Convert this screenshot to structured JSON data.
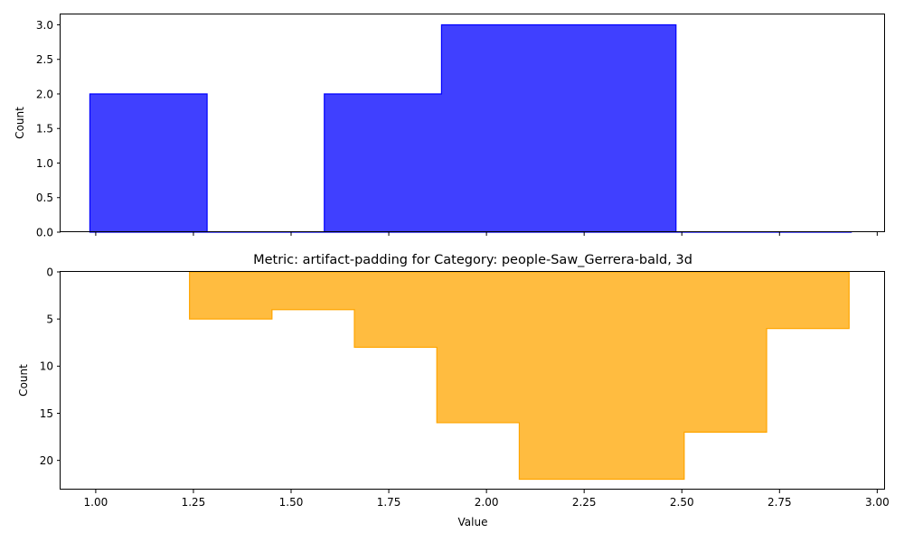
{
  "chart_data": [
    {
      "type": "histogram-step",
      "title": "",
      "xlabel": "",
      "ylabel": "Count",
      "xlim": [
        0.91,
        3.02
      ],
      "ylim": [
        0,
        3.15
      ],
      "xticks": [
        1.0,
        1.25,
        1.5,
        1.75,
        2.0,
        2.25,
        2.5,
        2.75,
        3.0
      ],
      "show_xtick_labels": false,
      "yticks": [
        "0.0",
        "0.5",
        "1.0",
        "1.5",
        "2.0",
        "2.5",
        "3.0"
      ],
      "ytick_values": [
        0,
        0.5,
        1.0,
        1.5,
        2.0,
        2.5,
        3.0
      ],
      "y_inverted": false,
      "color": "#0000ff",
      "fill_alpha": 0.75,
      "bin_edges": [
        0.985,
        1.285,
        1.585,
        1.885,
        2.185,
        2.485,
        2.785,
        3.085
      ],
      "counts": [
        2,
        0,
        2,
        3,
        3,
        0,
        0
      ],
      "draw_until": 2.935
    },
    {
      "type": "histogram-step",
      "title": "Metric: artifact-padding for Category: people-Saw_Gerrera-bald, 3d",
      "xlabel": "Value",
      "ylabel": "Count",
      "xlim": [
        0.91,
        3.02
      ],
      "ylim": [
        0,
        23.1
      ],
      "xticks": [
        1.0,
        1.25,
        1.5,
        1.75,
        2.0,
        2.25,
        2.5,
        2.75,
        3.0
      ],
      "xtick_labels": [
        "1.00",
        "1.25",
        "1.50",
        "1.75",
        "2.00",
        "2.25",
        "2.50",
        "2.75",
        "3.00"
      ],
      "show_xtick_labels": true,
      "yticks": [
        "0",
        "5",
        "10",
        "15",
        "20"
      ],
      "ytick_values": [
        0,
        5,
        10,
        15,
        20
      ],
      "y_inverted": true,
      "color": "#ffa500",
      "fill_alpha": 0.75,
      "bin_edges": [
        1.24,
        1.451,
        1.662,
        1.873,
        2.084,
        2.295,
        2.506,
        2.717,
        2.928
      ],
      "counts": [
        5,
        4,
        8,
        16,
        22,
        22,
        17,
        6
      ]
    }
  ]
}
